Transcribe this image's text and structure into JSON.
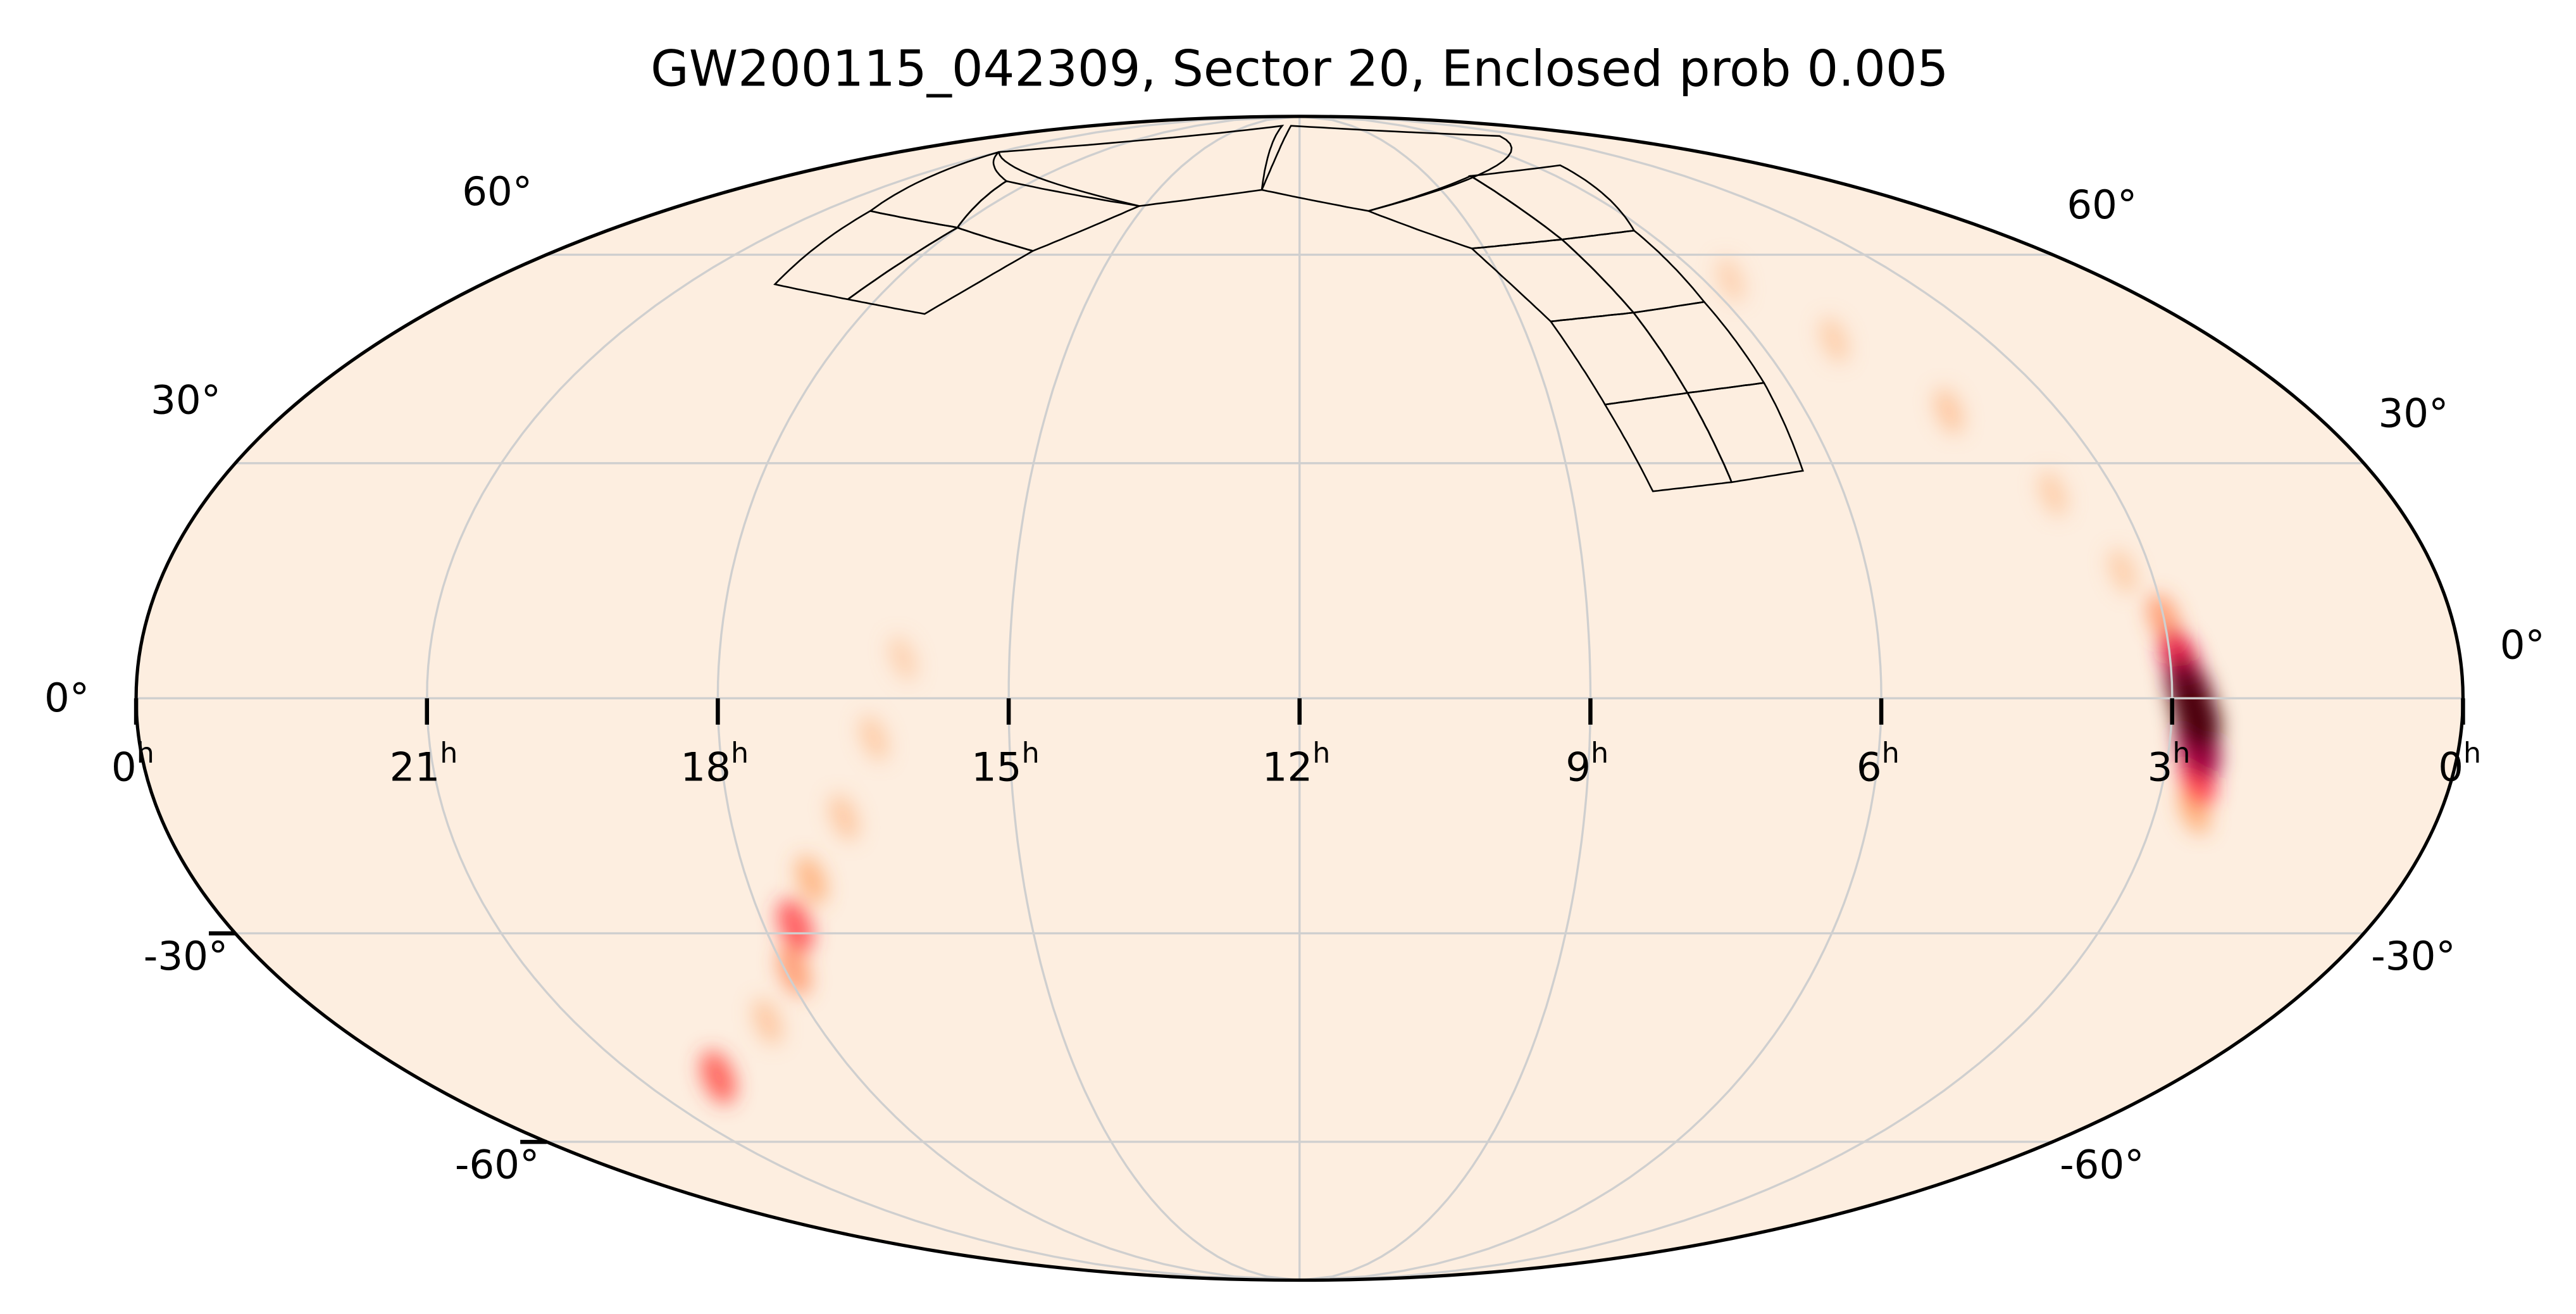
{
  "chart_data": {
    "type": "heatmap",
    "projection": "mollweide",
    "title": "GW200115_042309, Sector 20, Enclosed prob 0.005",
    "ra_ticks": [
      {
        "label": "0",
        "sup": "h",
        "ra_h": 24
      },
      {
        "label": "21",
        "sup": "h",
        "ra_h": 21
      },
      {
        "label": "18",
        "sup": "h",
        "ra_h": 18
      },
      {
        "label": "15",
        "sup": "h",
        "ra_h": 15
      },
      {
        "label": "12",
        "sup": "h",
        "ra_h": 12
      },
      {
        "label": "9",
        "sup": "h",
        "ra_h": 9
      },
      {
        "label": "6",
        "sup": "h",
        "ra_h": 6
      },
      {
        "label": "3",
        "sup": "h",
        "ra_h": 3
      },
      {
        "label": "0",
        "sup": "h",
        "ra_h": 0
      }
    ],
    "dec_ticks": [
      {
        "label": "60°",
        "dec": 60
      },
      {
        "label": "30°",
        "dec": 30
      },
      {
        "label": "0°",
        "dec": 0
      },
      {
        "label": "-30°",
        "dec": -30
      },
      {
        "label": "-60°",
        "dec": -60
      }
    ],
    "grid": true,
    "colors": {
      "background": "#fdeee0",
      "grid": "#cfcfcf",
      "colormap": [
        "#fdeee0",
        "#fdd3b0",
        "#ff8a3d",
        "#ff1f3f",
        "#b3004a",
        "#4d0010"
      ]
    },
    "probability_hotspots": [
      {
        "ra_h": 3.0,
        "dec": 10,
        "intensity": 0.25
      },
      {
        "ra_h": 2.9,
        "dec": 5,
        "intensity": 0.55
      },
      {
        "ra_h": 2.82,
        "dec": 1,
        "intensity": 0.9
      },
      {
        "ra_h": 2.75,
        "dec": -2,
        "intensity": 1.0
      },
      {
        "ra_h": 2.7,
        "dec": -6,
        "intensity": 0.8
      },
      {
        "ra_h": 2.65,
        "dec": -10,
        "intensity": 0.45
      },
      {
        "ra_h": 2.6,
        "dec": -14,
        "intensity": 0.2
      },
      {
        "ra_h": 3.3,
        "dec": 16,
        "intensity": 0.07
      },
      {
        "ra_h": 3.7,
        "dec": 26,
        "intensity": 0.07
      },
      {
        "ra_h": 4.3,
        "dec": 37,
        "intensity": 0.1
      },
      {
        "ra_h": 5.0,
        "dec": 47,
        "intensity": 0.07
      },
      {
        "ra_h": 5.6,
        "dec": 56,
        "intensity": 0.05
      },
      {
        "ra_h": 16.1,
        "dec": 5,
        "intensity": 0.05
      },
      {
        "ra_h": 16.4,
        "dec": -5,
        "intensity": 0.08
      },
      {
        "ra_h": 16.8,
        "dec": -15,
        "intensity": 0.1
      },
      {
        "ra_h": 17.3,
        "dec": -23,
        "intensity": 0.18
      },
      {
        "ra_h": 17.65,
        "dec": -29,
        "intensity": 0.4
      },
      {
        "ra_h": 17.9,
        "dec": -35,
        "intensity": 0.25
      },
      {
        "ra_h": 18.6,
        "dec": -42,
        "intensity": 0.1
      },
      {
        "ra_h": 19.9,
        "dec": -50,
        "intensity": 0.38
      }
    ],
    "sector_footprints": [
      [
        [
          8.1,
          26.3
        ],
        [
          7.2,
          27.5
        ],
        [
          7.3,
          39.5
        ],
        [
          8.35,
          37.9
        ]
      ],
      [
        [
          7.2,
          27.5
        ],
        [
          6.36,
          29
        ],
        [
          6.3,
          40.9
        ],
        [
          7.3,
          39.5
        ]
      ],
      [
        [
          8.35,
          37.9
        ],
        [
          7.3,
          39.5
        ],
        [
          7.4,
          51
        ],
        [
          8.6,
          49.7
        ]
      ],
      [
        [
          7.3,
          39.5
        ],
        [
          6.3,
          40.9
        ],
        [
          6.3,
          52.6
        ],
        [
          7.4,
          51
        ]
      ],
      [
        [
          8.6,
          49.7
        ],
        [
          7.4,
          51
        ],
        [
          7.6,
          62.5
        ],
        [
          9.2,
          61
        ]
      ],
      [
        [
          7.4,
          51
        ],
        [
          6.3,
          52.6
        ],
        [
          6.2,
          64
        ],
        [
          7.6,
          62.5
        ]
      ],
      [
        [
          9.2,
          61
        ],
        [
          7.6,
          62.5
        ],
        [
          8.0,
          74
        ],
        [
          10.7,
          67.4
        ]
      ],
      [
        [
          7.6,
          62.5
        ],
        [
          6.2,
          64
        ],
        [
          5.3,
          76.2
        ],
        [
          8.0,
          74
        ]
      ],
      [
        [
          10.7,
          67.4
        ],
        [
          12.8,
          71.3
        ],
        [
          12.5,
          86
        ],
        [
          4.0,
          83
        ]
      ],
      [
        [
          15.1,
          68.3
        ],
        [
          12.8,
          71.3
        ],
        [
          13.0,
          86
        ],
        [
          21.0,
          79.1
        ]
      ],
      [
        [
          19.7,
          55.3
        ],
        [
          18.4,
          53
        ],
        [
          18.0,
          64.5
        ],
        [
          20.1,
          67.4
        ]
      ],
      [
        [
          18.4,
          53
        ],
        [
          17.15,
          50.8
        ],
        [
          16.3,
          60.6
        ],
        [
          18.0,
          64.5
        ]
      ],
      [
        [
          20.1,
          67.4
        ],
        [
          18.0,
          64.5
        ],
        [
          18.6,
          73
        ],
        [
          21.0,
          79.1
        ]
      ],
      [
        [
          18.0,
          64.5
        ],
        [
          16.3,
          60.6
        ],
        [
          15.1,
          68.3
        ],
        [
          18.6,
          73
        ]
      ]
    ]
  }
}
